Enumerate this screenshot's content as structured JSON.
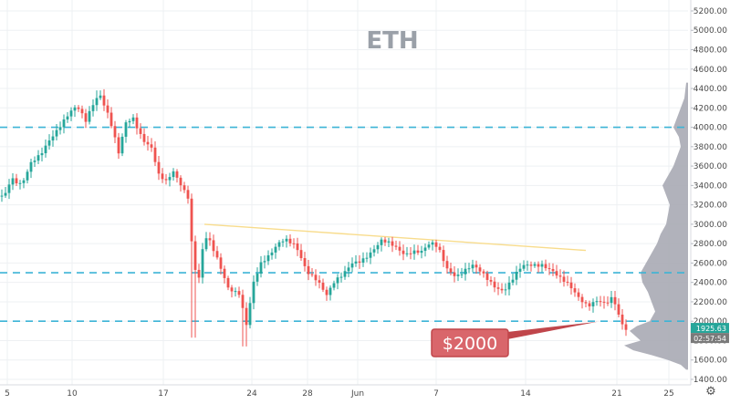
{
  "chart_data": {
    "type": "candlestick",
    "title": "ETH",
    "x_ticks": [
      "5",
      "10",
      "17",
      "24",
      "28",
      "Jun",
      "7",
      "14",
      "21",
      "25"
    ],
    "y_ticks": [
      "1400.00",
      "1600.00",
      "1800.00",
      "2000.00",
      "2200.00",
      "2400.00",
      "2600.00",
      "2800.00",
      "3000.00",
      "3200.00",
      "3400.00",
      "3600.00",
      "3800.00",
      "4000.00",
      "4200.00",
      "4400.00",
      "4600.00",
      "4800.00",
      "5000.00",
      "5200.00"
    ],
    "ylim": [
      1350,
      5300
    ],
    "horizontal_levels": [
      4000,
      2500,
      2000
    ],
    "trendline": {
      "from": {
        "date": "May 19",
        "price": 3000
      },
      "to": {
        "date": "Jun 19",
        "price": 2730
      }
    },
    "annotation": {
      "text": "$2000",
      "points_to": {
        "date": "Jun 19",
        "price": 2000
      }
    },
    "last_price": "1925.63",
    "countdown": "02:57:54",
    "colors": {
      "up": "#26a69a",
      "down": "#ef5350",
      "levels": "#3cb4d6",
      "trendline": "#f8dc8c",
      "annotation": "#c0464b",
      "volume_profile": "#a8aab4",
      "price_tag": "#26a69a",
      "countdown_tag": "#7a7a7a"
    },
    "volume_profile": true,
    "grid": true,
    "legend": "none"
  },
  "settings": {
    "icon": "gear-icon",
    "glyph": "⚙"
  }
}
